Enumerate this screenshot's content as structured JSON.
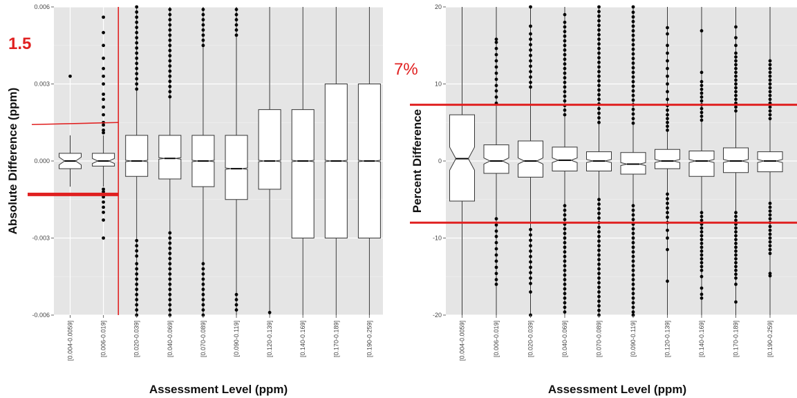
{
  "colors": {
    "panel_bg": "#e5e5e5",
    "grid_major": "#ffffff",
    "box_fill": "#ffffff",
    "box_stroke": "#333333",
    "outlier": "#000000",
    "reference_line": "#e02020"
  },
  "chart_data": [
    {
      "type": "boxplot",
      "notched": true,
      "xlabel": "Assessment Level (ppm)",
      "ylabel": "Absolute Difference (ppm)",
      "ylim": [
        -0.006,
        0.006
      ],
      "yticks": [
        -0.006,
        -0.003,
        0.0,
        0.003,
        0.006
      ],
      "ytick_labels": [
        "-0.006",
        "-0.003",
        "0.000",
        "0.003",
        "0.006"
      ],
      "grid": true,
      "categories": [
        "[0.004-0.0059]",
        "[0.006-0.019]",
        "[0.020-0.039]",
        "[0.040-0.069]",
        "[0.070-0.089]",
        "[0.090-0.119]",
        "[0.120-0.139]",
        "[0.140-0.169]",
        "[0.170-0.189]",
        "[0.190-0.259]"
      ],
      "boxes": [
        {
          "whislo": -0.001,
          "q1": -0.0003,
          "med": 0.0,
          "q3": 0.0003,
          "whishi": 0.001,
          "notch_lo": -0.00015,
          "notch_hi": 0.00015,
          "fliers": [
            0.0033
          ]
        },
        {
          "whislo": -0.001,
          "q1": -0.0002,
          "med": 0.0,
          "q3": 0.0003,
          "whishi": 0.001,
          "notch_lo": -0.0001,
          "notch_hi": 0.0001,
          "fliers": [
            0.0011,
            0.0012,
            0.0014,
            0.0015,
            0.0018,
            0.0021,
            0.0024,
            0.0026,
            0.003,
            0.0033,
            0.0036,
            0.004,
            0.0045,
            0.005,
            0.0056,
            -0.0011,
            -0.0012,
            -0.0014,
            -0.0016,
            -0.0018,
            -0.002,
            -0.0023,
            -0.003
          ]
        },
        {
          "whislo": -0.006,
          "q1": -0.0006,
          "med": 0.0,
          "q3": 0.001,
          "whishi": 0.006,
          "notch_lo": -3e-05,
          "notch_hi": 3e-05,
          "fliers": [
            0.0028,
            0.003,
            0.0032,
            0.0034,
            0.0036,
            0.0038,
            0.004,
            0.0042,
            0.0044,
            0.0046,
            0.0048,
            0.005,
            0.0052,
            0.0054,
            0.0056,
            0.0058,
            0.006,
            -0.0031,
            -0.0033,
            -0.0035,
            -0.0037,
            -0.004,
            -0.0042,
            -0.0044,
            -0.0046,
            -0.0048,
            -0.005,
            -0.0052,
            -0.0054,
            -0.0056,
            -0.0058,
            -0.006
          ]
        },
        {
          "whislo": -0.006,
          "q1": -0.0007,
          "med": 0.0001,
          "q3": 0.001,
          "whishi": 0.006,
          "notch_lo": 7e-05,
          "notch_hi": 0.00013,
          "fliers": [
            0.0025,
            0.0027,
            0.0029,
            0.0031,
            0.0033,
            0.0035,
            0.0037,
            0.0039,
            0.0041,
            0.0043,
            0.0045,
            0.0047,
            0.0049,
            0.0051,
            0.0053,
            0.0055,
            0.0057,
            0.0059,
            -0.0028,
            -0.003,
            -0.0032,
            -0.0034,
            -0.0036,
            -0.0038,
            -0.004,
            -0.0042,
            -0.0044,
            -0.0046,
            -0.0048,
            -0.005,
            -0.0052,
            -0.0054,
            -0.0056,
            -0.0058,
            -0.006
          ]
        },
        {
          "whislo": -0.006,
          "q1": -0.001,
          "med": 0.0,
          "q3": 0.001,
          "whishi": 0.006,
          "notch_lo": -3e-05,
          "notch_hi": 3e-05,
          "fliers": [
            0.0045,
            0.0047,
            0.0049,
            0.0051,
            0.0053,
            0.0055,
            0.0057,
            0.0059,
            -0.004,
            -0.0042,
            -0.0044,
            -0.0046,
            -0.0048,
            -0.005,
            -0.0052,
            -0.0054,
            -0.0056,
            -0.0058,
            -0.006
          ]
        },
        {
          "whislo": -0.006,
          "q1": -0.0015,
          "med": -0.0003,
          "q3": 0.001,
          "whishi": 0.006,
          "notch_lo": -0.00033,
          "notch_hi": -0.00027,
          "fliers": [
            0.0049,
            0.0051,
            0.0053,
            0.0055,
            0.0057,
            0.0059,
            -0.0052,
            -0.0054,
            -0.0056,
            -0.0058
          ]
        },
        {
          "whislo": -0.006,
          "q1": -0.0011,
          "med": 0.0,
          "q3": 0.002,
          "whishi": 0.006,
          "notch_lo": -3e-05,
          "notch_hi": 3e-05,
          "fliers": [
            -0.0059
          ]
        },
        {
          "whislo": -0.006,
          "q1": -0.003,
          "med": 0.0,
          "q3": 0.002,
          "whishi": 0.006,
          "notch_lo": -3e-05,
          "notch_hi": 3e-05,
          "fliers": []
        },
        {
          "whislo": -0.006,
          "q1": -0.003,
          "med": 0.0,
          "q3": 0.003,
          "whishi": 0.006,
          "notch_lo": -3e-05,
          "notch_hi": 3e-05,
          "fliers": []
        },
        {
          "whislo": -0.006,
          "q1": -0.003,
          "med": 0.0,
          "q3": 0.003,
          "whishi": 0.006,
          "notch_lo": -3e-05,
          "notch_hi": 3e-05,
          "fliers": []
        }
      ],
      "annotations": {
        "label": "1.5",
        "upper_threshold": 0.0015,
        "lower_threshold": -0.0013,
        "divider_after_category": "[0.006-0.019]"
      }
    },
    {
      "type": "boxplot",
      "notched": true,
      "xlabel": "Assessment Level (ppm)",
      "ylabel": "Percent Difference",
      "ylim": [
        -20,
        20
      ],
      "yticks": [
        -20,
        -10,
        0,
        10,
        20
      ],
      "ytick_labels": [
        "-20",
        "-10",
        "0",
        "10",
        "20"
      ],
      "grid": true,
      "categories": [
        "[0.004-0.0059]",
        "[0.006-0.019]",
        "[0.020-0.039]",
        "[0.040-0.069]",
        "[0.070-0.089]",
        "[0.090-0.119]",
        "[0.120-0.139]",
        "[0.140-0.169]",
        "[0.170-0.189]",
        "[0.190-0.259]"
      ],
      "boxes": [
        {
          "whislo": -20,
          "q1": -5.2,
          "med": 0.3,
          "q3": 6.0,
          "whishi": 20,
          "notch_lo": -1.2,
          "notch_hi": 1.8,
          "fliers": []
        },
        {
          "whislo": -20,
          "q1": -1.6,
          "med": 0.0,
          "q3": 2.1,
          "whishi": 20,
          "notch_lo": -0.4,
          "notch_hi": 0.4,
          "fliers": [
            7.5,
            8.3,
            9.1,
            9.8,
            10.6,
            11.4,
            12.2,
            13.0,
            13.8,
            14.6,
            15.4,
            15.8,
            -7.5,
            -8.3,
            -9.1,
            -9.8,
            -10.6,
            -11.4,
            -12.2,
            -13.0,
            -13.8,
            -14.6,
            -15.4,
            -16.0
          ]
        },
        {
          "whislo": -20,
          "q1": -2.1,
          "med": 0.0,
          "q3": 2.6,
          "whishi": 20,
          "notch_lo": -0.4,
          "notch_hi": 0.4,
          "fliers": [
            9.6,
            10.2,
            10.9,
            11.6,
            12.3,
            13.0,
            13.7,
            14.4,
            15.1,
            15.8,
            16.5,
            17.5,
            20,
            -8.9,
            -9.6,
            -10.3,
            -11.0,
            -11.7,
            -12.4,
            -13.1,
            -13.8,
            -14.5,
            -15.2,
            -15.9,
            -17.0,
            -20
          ]
        },
        {
          "whislo": -20,
          "q1": -1.3,
          "med": 0.1,
          "q3": 1.8,
          "whishi": 20,
          "notch_lo": -0.2,
          "notch_hi": 0.4,
          "fliers": [
            6.0,
            6.6,
            7.2,
            7.8,
            8.4,
            9.0,
            9.6,
            10.2,
            10.8,
            11.4,
            12.0,
            12.6,
            13.2,
            13.8,
            14.4,
            15.0,
            15.6,
            16.2,
            16.8,
            17.4,
            18.0,
            19.0,
            -5.8,
            -6.4,
            -7.0,
            -7.6,
            -8.2,
            -8.8,
            -9.4,
            -10.0,
            -10.6,
            -11.2,
            -11.8,
            -12.4,
            -13.0,
            -13.6,
            -14.2,
            -14.8,
            -15.4,
            -16.0,
            -16.6,
            -17.2,
            -17.8,
            -18.4,
            -19.0,
            -19.6
          ]
        },
        {
          "whislo": -20,
          "q1": -1.3,
          "med": 0.0,
          "q3": 1.2,
          "whishi": 20,
          "notch_lo": -0.2,
          "notch_hi": 0.2,
          "fliers": [
            5.0,
            5.6,
            6.2,
            6.8,
            7.4,
            8.0,
            8.6,
            9.2,
            9.8,
            10.4,
            11.0,
            11.6,
            12.2,
            12.8,
            13.4,
            14.0,
            14.6,
            15.2,
            15.8,
            16.4,
            17.0,
            17.6,
            18.2,
            18.8,
            19.4,
            20,
            -5.0,
            -5.6,
            -6.2,
            -6.8,
            -7.4,
            -8.0,
            -8.6,
            -9.2,
            -9.8,
            -10.4,
            -11.0,
            -11.6,
            -12.2,
            -12.8,
            -13.4,
            -14.0,
            -14.6,
            -15.2,
            -15.8,
            -16.4,
            -17.0,
            -17.6,
            -18.2,
            -18.8,
            -19.4,
            -20
          ]
        },
        {
          "whislo": -20,
          "q1": -1.7,
          "med": -0.4,
          "q3": 1.1,
          "whishi": 20,
          "notch_lo": -0.6,
          "notch_hi": -0.2,
          "fliers": [
            4.9,
            5.5,
            6.1,
            6.7,
            7.3,
            7.9,
            8.5,
            9.1,
            9.7,
            10.3,
            10.9,
            11.5,
            12.1,
            12.7,
            13.3,
            13.9,
            14.5,
            15.1,
            15.7,
            16.3,
            16.9,
            17.5,
            18.1,
            18.7,
            19.3,
            20,
            -5.8,
            -6.4,
            -7.0,
            -7.6,
            -8.2,
            -8.8,
            -9.4,
            -10.0,
            -10.6,
            -11.2,
            -11.8,
            -12.4,
            -13.0,
            -13.6,
            -14.2,
            -14.8,
            -15.4,
            -16.0,
            -16.6,
            -17.2,
            -17.8,
            -18.4,
            -19.0,
            -19.6,
            -20
          ]
        },
        {
          "whislo": -20,
          "q1": -1.0,
          "med": 0.0,
          "q3": 1.5,
          "whishi": 20,
          "notch_lo": -0.2,
          "notch_hi": 0.2,
          "fliers": [
            4.0,
            4.5,
            5.0,
            5.5,
            6.0,
            6.6,
            7.2,
            8.0,
            9.0,
            10.0,
            11.0,
            12.0,
            13.0,
            14.0,
            15.0,
            16.5,
            17.3,
            -4.3,
            -4.9,
            -5.5,
            -6.1,
            -6.7,
            -7.3,
            -8.0,
            -9.0,
            -10.0,
            -11.5,
            -15.6
          ]
        },
        {
          "whislo": -20,
          "q1": -2.0,
          "med": 0.0,
          "q3": 1.3,
          "whishi": 20,
          "notch_lo": -0.2,
          "notch_hi": 0.2,
          "fliers": [
            5.3,
            5.8,
            6.3,
            6.8,
            7.3,
            7.8,
            8.3,
            8.8,
            9.3,
            9.8,
            10.3,
            11.5,
            16.9,
            -6.7,
            -7.2,
            -7.7,
            -8.2,
            -8.7,
            -9.2,
            -9.7,
            -10.2,
            -10.7,
            -11.2,
            -11.7,
            -12.2,
            -12.7,
            -13.2,
            -13.7,
            -14.2,
            -15.0,
            -16.5,
            -17.3,
            -17.8
          ]
        },
        {
          "whislo": -20,
          "q1": -1.5,
          "med": 0.0,
          "q3": 1.7,
          "whishi": 20,
          "notch_lo": -0.2,
          "notch_hi": 0.2,
          "fliers": [
            6.5,
            7.0,
            7.5,
            8.0,
            8.5,
            9.0,
            9.5,
            10.0,
            10.5,
            11.0,
            11.5,
            12.0,
            12.5,
            13.0,
            13.5,
            14.0,
            15.0,
            16.0,
            17.4,
            -6.7,
            -7.2,
            -7.7,
            -8.2,
            -8.7,
            -9.2,
            -9.7,
            -10.2,
            -10.7,
            -11.2,
            -11.7,
            -12.2,
            -12.7,
            -13.2,
            -13.7,
            -14.2,
            -14.7,
            -15.2,
            -16.0,
            -18.3
          ]
        },
        {
          "whislo": -20,
          "q1": -1.4,
          "med": 0.0,
          "q3": 1.2,
          "whishi": 20,
          "notch_lo": -0.2,
          "notch_hi": 0.2,
          "fliers": [
            5.5,
            6.0,
            6.5,
            7.0,
            7.5,
            8.0,
            8.5,
            9.0,
            9.5,
            10.0,
            10.5,
            11.0,
            11.5,
            12.0,
            12.5,
            13.0,
            -5.5,
            -6.0,
            -6.5,
            -7.0,
            -7.5,
            -8.0,
            -8.5,
            -9.0,
            -9.5,
            -10.0,
            -10.5,
            -11.0,
            -11.5,
            -12.0,
            -14.6,
            -14.9
          ]
        }
      ],
      "annotations": {
        "label": "7%",
        "upper_threshold": 7.3,
        "lower_threshold": -8.0
      }
    }
  ]
}
